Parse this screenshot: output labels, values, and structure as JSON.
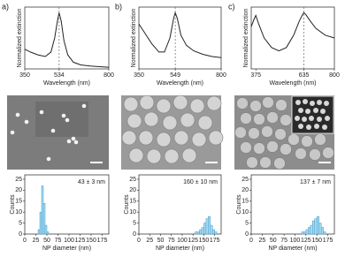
{
  "panel_labels": [
    "a)",
    "b)",
    "c)"
  ],
  "chart_data": [
    {
      "type": "line",
      "xlabel": "Wavelength (nm)",
      "ylabel": "Normalized extinction",
      "color": "#222222",
      "x": [
        350,
        380,
        420,
        460,
        490,
        510,
        525,
        534,
        545,
        560,
        580,
        610,
        650,
        700,
        750,
        800
      ],
      "values": [
        0.35,
        0.3,
        0.25,
        0.22,
        0.3,
        0.55,
        0.85,
        1,
        0.85,
        0.5,
        0.25,
        0.12,
        0.07,
        0.05,
        0.04,
        0.03
      ],
      "xlim": [
        350,
        800
      ],
      "xticks": [
        350,
        534,
        800
      ],
      "ylim": [
        0,
        1.1
      ],
      "peak_line": true
    },
    {
      "type": "line",
      "xlabel": "Wavelength (nm)",
      "ylabel": "Normalized extinction",
      "color": "#222222",
      "x": [
        350,
        380,
        420,
        460,
        490,
        520,
        540,
        549,
        560,
        580,
        610,
        650,
        700,
        750,
        800
      ],
      "values": [
        0.8,
        0.65,
        0.45,
        0.3,
        0.3,
        0.55,
        0.9,
        1,
        0.9,
        0.6,
        0.42,
        0.32,
        0.26,
        0.22,
        0.2
      ],
      "xlim": [
        350,
        800
      ],
      "xticks": [
        350,
        549,
        800
      ],
      "ylim": [
        0,
        1.1
      ],
      "peak_line": true
    },
    {
      "type": "line",
      "xlabel": "Wavelength (nm)",
      "ylabel": "Normalized extinction",
      "color": "#222222",
      "x": [
        350,
        365,
        375,
        390,
        420,
        460,
        500,
        540,
        580,
        610,
        630,
        635,
        645,
        670,
        700,
        750,
        800
      ],
      "values": [
        0.75,
        0.88,
        0.95,
        0.8,
        0.55,
        0.38,
        0.32,
        0.38,
        0.6,
        0.85,
        0.98,
        1,
        0.97,
        0.85,
        0.72,
        0.6,
        0.55
      ],
      "xlim": [
        350,
        800
      ],
      "xticks": [
        375,
        635,
        800
      ],
      "ylim": [
        0,
        1.1
      ],
      "peak_line": true
    },
    {
      "type": "histogram",
      "xlabel": "NP diameter (nm)",
      "ylabel": "Counts",
      "annotation": "43 ± 3 nm",
      "color": "#a9d9ef",
      "bins": [
        30,
        34,
        38,
        42,
        46,
        50,
        54
      ],
      "values": [
        2,
        10,
        22,
        14,
        4,
        1
      ],
      "xlim": [
        0,
        190
      ],
      "xticks": [
        0,
        25,
        50,
        75,
        100,
        125,
        150,
        175
      ],
      "ylim": [
        0,
        27
      ],
      "yticks": [
        0,
        5,
        10,
        15,
        20,
        25
      ]
    },
    {
      "type": "histogram",
      "xlabel": "NP diameter (nm)",
      "ylabel": "Counts",
      "annotation": "160 ± 10 nm",
      "color": "#a9d9ef",
      "bins": [
        130,
        135,
        140,
        145,
        150,
        155,
        160,
        165,
        170,
        175,
        180
      ],
      "values": [
        1,
        1,
        2,
        3,
        5,
        7,
        8,
        4,
        2,
        1
      ],
      "xlim": [
        0,
        190
      ],
      "xticks": [
        0,
        25,
        50,
        75,
        100,
        125,
        150,
        175
      ],
      "ylim": [
        0,
        27
      ],
      "yticks": [
        0,
        5,
        10,
        15,
        20,
        25
      ]
    },
    {
      "type": "histogram",
      "xlabel": "NP diameter (nm)",
      "ylabel": "Counts",
      "annotation": "137 ± 7 nm",
      "color": "#a9d9ef",
      "bins": [
        115,
        120,
        125,
        130,
        135,
        140,
        145,
        150,
        155,
        160,
        165,
        170
      ],
      "values": [
        1,
        1,
        2,
        3,
        4,
        6,
        7,
        8,
        5,
        3,
        1
      ],
      "xlim": [
        0,
        190
      ],
      "xticks": [
        0,
        25,
        50,
        75,
        100,
        125,
        150,
        175
      ],
      "ylim": [
        0,
        27
      ],
      "yticks": [
        0,
        5,
        10,
        15,
        20,
        25
      ]
    }
  ]
}
